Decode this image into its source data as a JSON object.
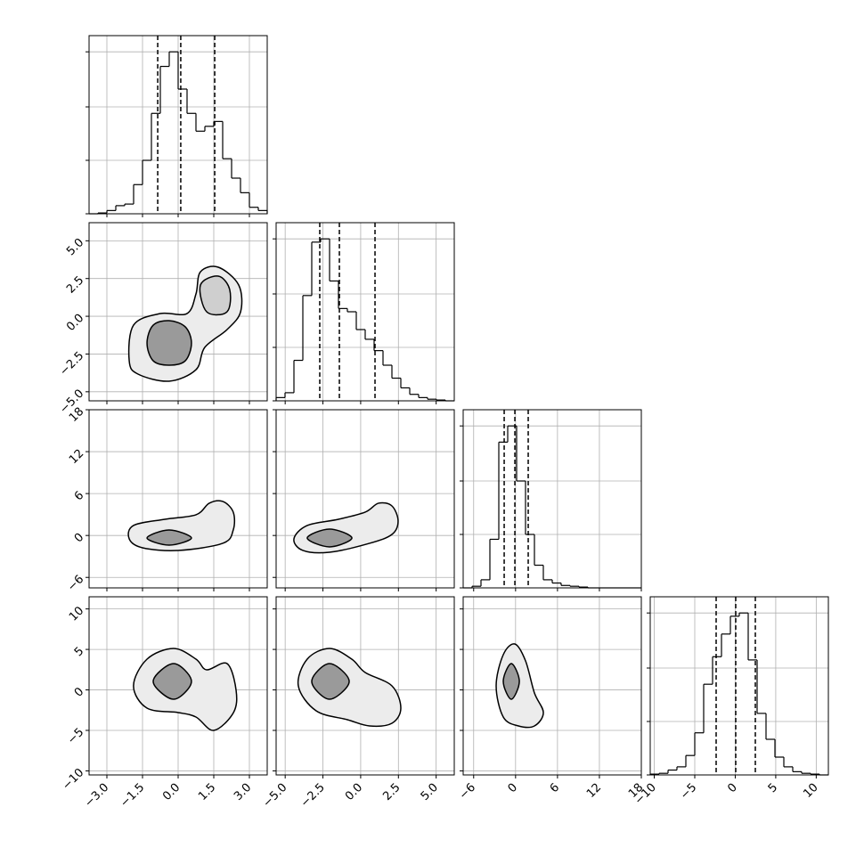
{
  "chart_data": {
    "type": "corner",
    "color": "#000000",
    "fill_colors": [
      "#ececec",
      "#9a9a9a",
      "#cfcfcf"
    ],
    "grid": true,
    "parameters": [
      {
        "lim": [
          -3.75,
          3.75
        ],
        "ticks": [
          {
            "value": -3,
            "label": "−3.0"
          },
          {
            "value": -1.5,
            "label": "−1.5"
          },
          {
            "value": 0,
            "label": "0.0"
          },
          {
            "value": 1.5,
            "label": "1.5"
          },
          {
            "value": 3,
            "label": "3.0"
          }
        ]
      },
      {
        "lim": [
          -5.6,
          6.2
        ],
        "ticks": [
          {
            "value": -5,
            "label": "−5.0"
          },
          {
            "value": -2.5,
            "label": "−2.5"
          },
          {
            "value": 0,
            "label": "0.0"
          },
          {
            "value": 2.5,
            "label": "2.5"
          },
          {
            "value": 5,
            "label": "5.0"
          }
        ]
      },
      {
        "lim": [
          -7.5,
          18
        ],
        "ticks": [
          {
            "value": -6,
            "label": "−6"
          },
          0,
          6,
          12,
          18
        ]
      },
      {
        "lim": [
          -10.5,
          11.5
        ],
        "ticks": [
          {
            "value": -10,
            "label": "−10"
          },
          {
            "value": -5,
            "label": "−5"
          },
          0,
          5,
          10
        ]
      }
    ],
    "hist_ylim": [
      0,
      1.1
    ],
    "hist_yticks": [
      0,
      0.33,
      0.66,
      1.0
    ],
    "histograms": [
      {
        "bins": [
          -3.75,
          -3.375,
          -3,
          -2.625,
          -2.25,
          -1.875,
          -1.5,
          -1.125,
          -0.75,
          -0.375,
          0,
          0.375,
          0.75,
          1.125,
          1.5,
          1.875,
          2.25,
          2.625,
          3,
          3.375,
          3.75
        ],
        "counts": [
          0,
          0.005,
          0.02,
          0.05,
          0.06,
          0.18,
          0.33,
          0.62,
          0.91,
          1.0,
          0.77,
          0.62,
          0.51,
          0.54,
          0.57,
          0.34,
          0.22,
          0.13,
          0.04,
          0.02
        ],
        "quantiles": [
          -0.86,
          0.11,
          1.54
        ]
      },
      {
        "bins": [
          -5.6,
          -5.01,
          -4.42,
          -3.83,
          -3.24,
          -2.65,
          -2.06,
          -1.47,
          -0.88,
          -0.29,
          0.3,
          0.89,
          1.48,
          2.07,
          2.66,
          3.25,
          3.84,
          4.43,
          5.02,
          5.61,
          6.2
        ],
        "counts": [
          0.02,
          0.05,
          0.25,
          0.65,
          0.98,
          1.0,
          0.74,
          0.57,
          0.55,
          0.44,
          0.38,
          0.31,
          0.22,
          0.14,
          0.08,
          0.04,
          0.02,
          0.01,
          0.005,
          0
        ],
        "quantiles": [
          -2.71,
          -1.41,
          0.95
        ]
      },
      {
        "bins": [
          -7.5,
          -6.225,
          -4.95,
          -3.675,
          -2.4,
          -1.125,
          0.15,
          1.425,
          2.7,
          3.975,
          5.25,
          6.525,
          7.8,
          9.075,
          10.35,
          11.625,
          12.9,
          14.175,
          15.45,
          16.725,
          18
        ],
        "counts": [
          0,
          0.01,
          0.05,
          0.3,
          0.9,
          1.0,
          0.66,
          0.33,
          0.14,
          0.05,
          0.03,
          0.015,
          0.01,
          0.005,
          0,
          0,
          0,
          0,
          0,
          0
        ],
        "quantiles": [
          -1.63,
          -0.1,
          1.81
        ]
      },
      {
        "bins": [
          -10.5,
          -9.4,
          -8.3,
          -7.2,
          -6.1,
          -5,
          -3.9,
          -2.8,
          -1.7,
          -0.6,
          0.5,
          1.6,
          2.7,
          3.8,
          4.9,
          6,
          7.1,
          8.2,
          9.3,
          10.4,
          11.5
        ],
        "counts": [
          0.005,
          0.01,
          0.03,
          0.05,
          0.12,
          0.26,
          0.56,
          0.73,
          0.87,
          0.98,
          1.0,
          0.71,
          0.38,
          0.22,
          0.11,
          0.05,
          0.02,
          0.01,
          0.005,
          0
        ],
        "quantiles": [
          -2.36,
          0.06,
          2.48
        ]
      }
    ],
    "contours": [
      {
        "x": 0,
        "y": 1,
        "levels": [
          [
            [
              -2.06,
              -2.95
            ],
            [
              -1.88,
              -0.59
            ],
            [
              -0.75,
              0.18
            ],
            [
              0.37,
              0.18
            ],
            [
              0.75,
              1.48
            ],
            [
              0.94,
              2.95
            ],
            [
              1.69,
              3.25
            ],
            [
              2.55,
              2.07
            ],
            [
              2.63,
              0.3
            ],
            [
              2.06,
              -0.88
            ],
            [
              1.12,
              -2.06
            ],
            [
              0.75,
              -3.54
            ],
            [
              -0.38,
              -4.3
            ],
            [
              -1.69,
              -3.83
            ]
          ],
          [
            [
              -1.31,
              -1.77
            ],
            [
              -1.05,
              -0.59
            ],
            [
              -0.38,
              -0.29
            ],
            [
              0.3,
              -0.7
            ],
            [
              0.56,
              -1.77
            ],
            [
              0.3,
              -2.95
            ],
            [
              -0.38,
              -3.24
            ],
            [
              -1.05,
              -2.95
            ]
          ],
          [
            [
              0.94,
              2.07
            ],
            [
              1.69,
              2.66
            ],
            [
              2.17,
              1.77
            ],
            [
              2.06,
              0.3
            ],
            [
              1.2,
              0.3
            ]
          ]
        ]
      },
      {
        "x": 0,
        "y": 2,
        "levels": [
          [
            [
              -2.06,
              -0.48
            ],
            [
              -1.88,
              1.43
            ],
            [
              -0.56,
              2.32
            ],
            [
              0.75,
              2.96
            ],
            [
              1.31,
              4.62
            ],
            [
              1.88,
              4.87
            ],
            [
              2.32,
              3.34
            ],
            [
              2.32,
              0.79
            ],
            [
              1.88,
              -1.12
            ],
            [
              0,
              -2.14
            ],
            [
              -1.5,
              -1.76
            ]
          ],
          [
            [
              -1.31,
              -0.36
            ],
            [
              -0.38,
              0.79
            ],
            [
              0.56,
              -0.36
            ],
            [
              -0.38,
              -1.38
            ]
          ]
        ]
      },
      {
        "x": 1,
        "y": 2,
        "levels": [
          [
            [
              -4.42,
              -0.48
            ],
            [
              -3.54,
              1.43
            ],
            [
              -1.47,
              2.32
            ],
            [
              0.3,
              3.34
            ],
            [
              1.18,
              4.62
            ],
            [
              2.07,
              4.23
            ],
            [
              2.48,
              2.07
            ],
            [
              2.07,
              0.15
            ],
            [
              0.59,
              -1.12
            ],
            [
              -2.06,
              -2.4
            ],
            [
              -3.83,
              -2.14
            ]
          ],
          [
            [
              -3.54,
              -0.36
            ],
            [
              -2.06,
              0.92
            ],
            [
              -0.58,
              -0.36
            ],
            [
              -2.06,
              -1.63
            ]
          ]
        ]
      },
      {
        "x": 0,
        "y": 3,
        "levels": [
          [
            [
              -1.88,
              0.5
            ],
            [
              -1.31,
              3.8
            ],
            [
              -0.19,
              5.12
            ],
            [
              0.75,
              3.8
            ],
            [
              1.2,
              2.48
            ],
            [
              2.06,
              3.25
            ],
            [
              2.44,
              -0.05
            ],
            [
              2.33,
              -2.8
            ],
            [
              1.5,
              -5
            ],
            [
              0.75,
              -3.35
            ],
            [
              0,
              -2.8
            ],
            [
              -1.31,
              -2.25
            ]
          ],
          [
            [
              -1.05,
              1.05
            ],
            [
              -0.19,
              3.25
            ],
            [
              0.56,
              1.05
            ],
            [
              -0.19,
              -1.15
            ]
          ]
        ]
      },
      {
        "x": 1,
        "y": 3,
        "levels": [
          [
            [
              -4.13,
              0.5
            ],
            [
              -3.54,
              3.8
            ],
            [
              -2.06,
              5.12
            ],
            [
              -0.59,
              3.8
            ],
            [
              0.3,
              2.15
            ],
            [
              2.07,
              0.5
            ],
            [
              2.66,
              -2.25
            ],
            [
              2.07,
              -4.12
            ],
            [
              0.59,
              -4.45
            ],
            [
              -0.88,
              -3.68
            ],
            [
              -2.95,
              -2.58
            ]
          ],
          [
            [
              -3.24,
              1.05
            ],
            [
              -2.06,
              3.25
            ],
            [
              -0.76,
              1.05
            ],
            [
              -2.06,
              -1.15
            ]
          ]
        ]
      },
      {
        "x": 2,
        "y": 3,
        "levels": [
          [
            [
              -2.78,
              0.5
            ],
            [
              -1.76,
              4.35
            ],
            [
              -0.1,
              5.67
            ],
            [
              1.43,
              3.58
            ],
            [
              2.7,
              -0.38
            ],
            [
              3.98,
              -2.8
            ],
            [
              2.7,
              -4.45
            ],
            [
              0.41,
              -4.45
            ],
            [
              -1.76,
              -3.35
            ]
          ],
          [
            [
              -1.76,
              1.05
            ],
            [
              -0.61,
              3.25
            ],
            [
              0.54,
              1.05
            ],
            [
              -0.61,
              -1.15
            ]
          ]
        ]
      }
    ]
  }
}
